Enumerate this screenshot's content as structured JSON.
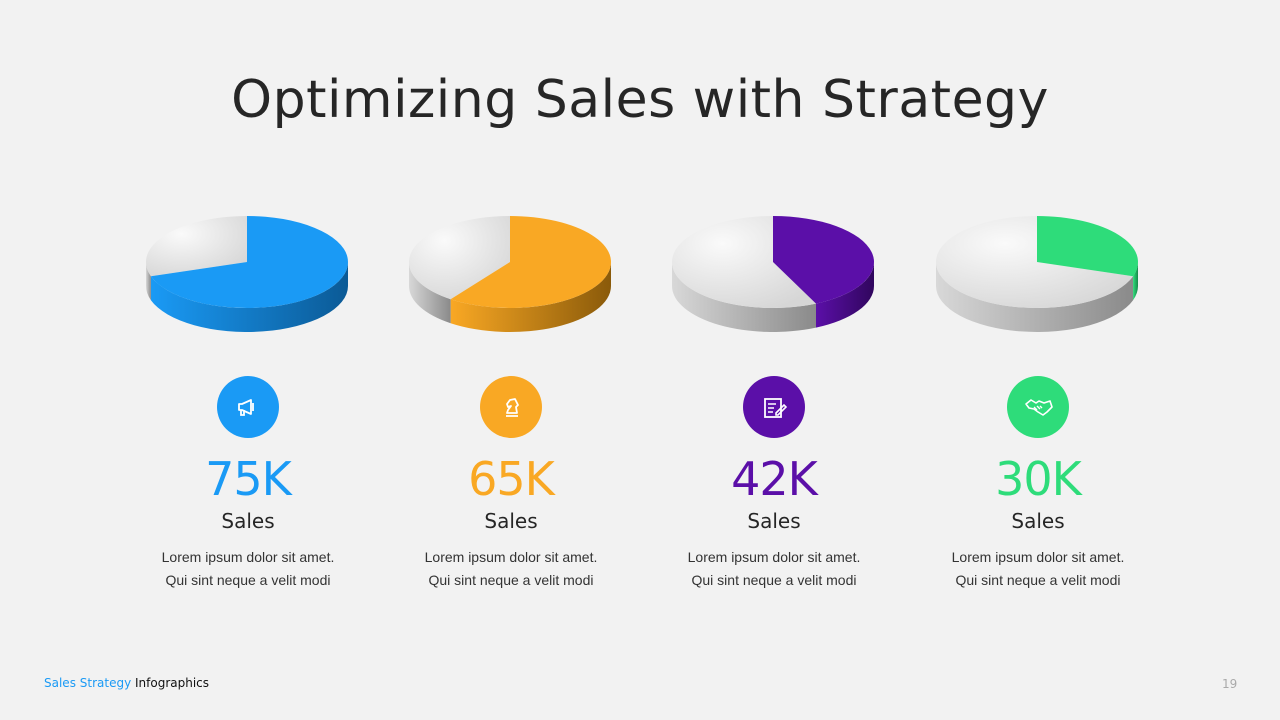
{
  "title": "Optimizing Sales with Strategy",
  "chart_data": {
    "type": "pie",
    "charts": [
      {
        "value_label": "75K",
        "label": "Sales",
        "fraction": 0.7,
        "color": "#1a9af5",
        "side_dark": "#0b5a96",
        "icon": "megaphone-icon",
        "desc_line1": "Lorem ipsum dolor sit amet.",
        "desc_line2": "Qui sint neque a velit modi"
      },
      {
        "value_label": "65K",
        "label": "Sales",
        "fraction": 0.6,
        "color": "#f9a824",
        "side_dark": "#8a5a0a",
        "icon": "chess-knight-icon",
        "desc_line1": "Lorem ipsum dolor sit amet.",
        "desc_line2": "Qui sint neque a velit modi"
      },
      {
        "value_label": "42K",
        "label": "Sales",
        "fraction": 0.43,
        "color": "#5b0fa8",
        "side_dark": "#30065d",
        "icon": "edit-note-icon",
        "desc_line1": "Lorem ipsum dolor sit amet.",
        "desc_line2": "Qui sint neque a velit modi"
      },
      {
        "value_label": "30K",
        "label": "Sales",
        "fraction": 0.3,
        "color": "#2edc7a",
        "side_dark": "#178a4a",
        "icon": "handshake-icon",
        "desc_line1": "Lorem ipsum dolor sit amet.",
        "desc_line2": "Qui sint neque a velit modi"
      }
    ]
  },
  "footer": {
    "part1": "Sales Strategy",
    "part2": "Infographics"
  },
  "page_number": "19"
}
